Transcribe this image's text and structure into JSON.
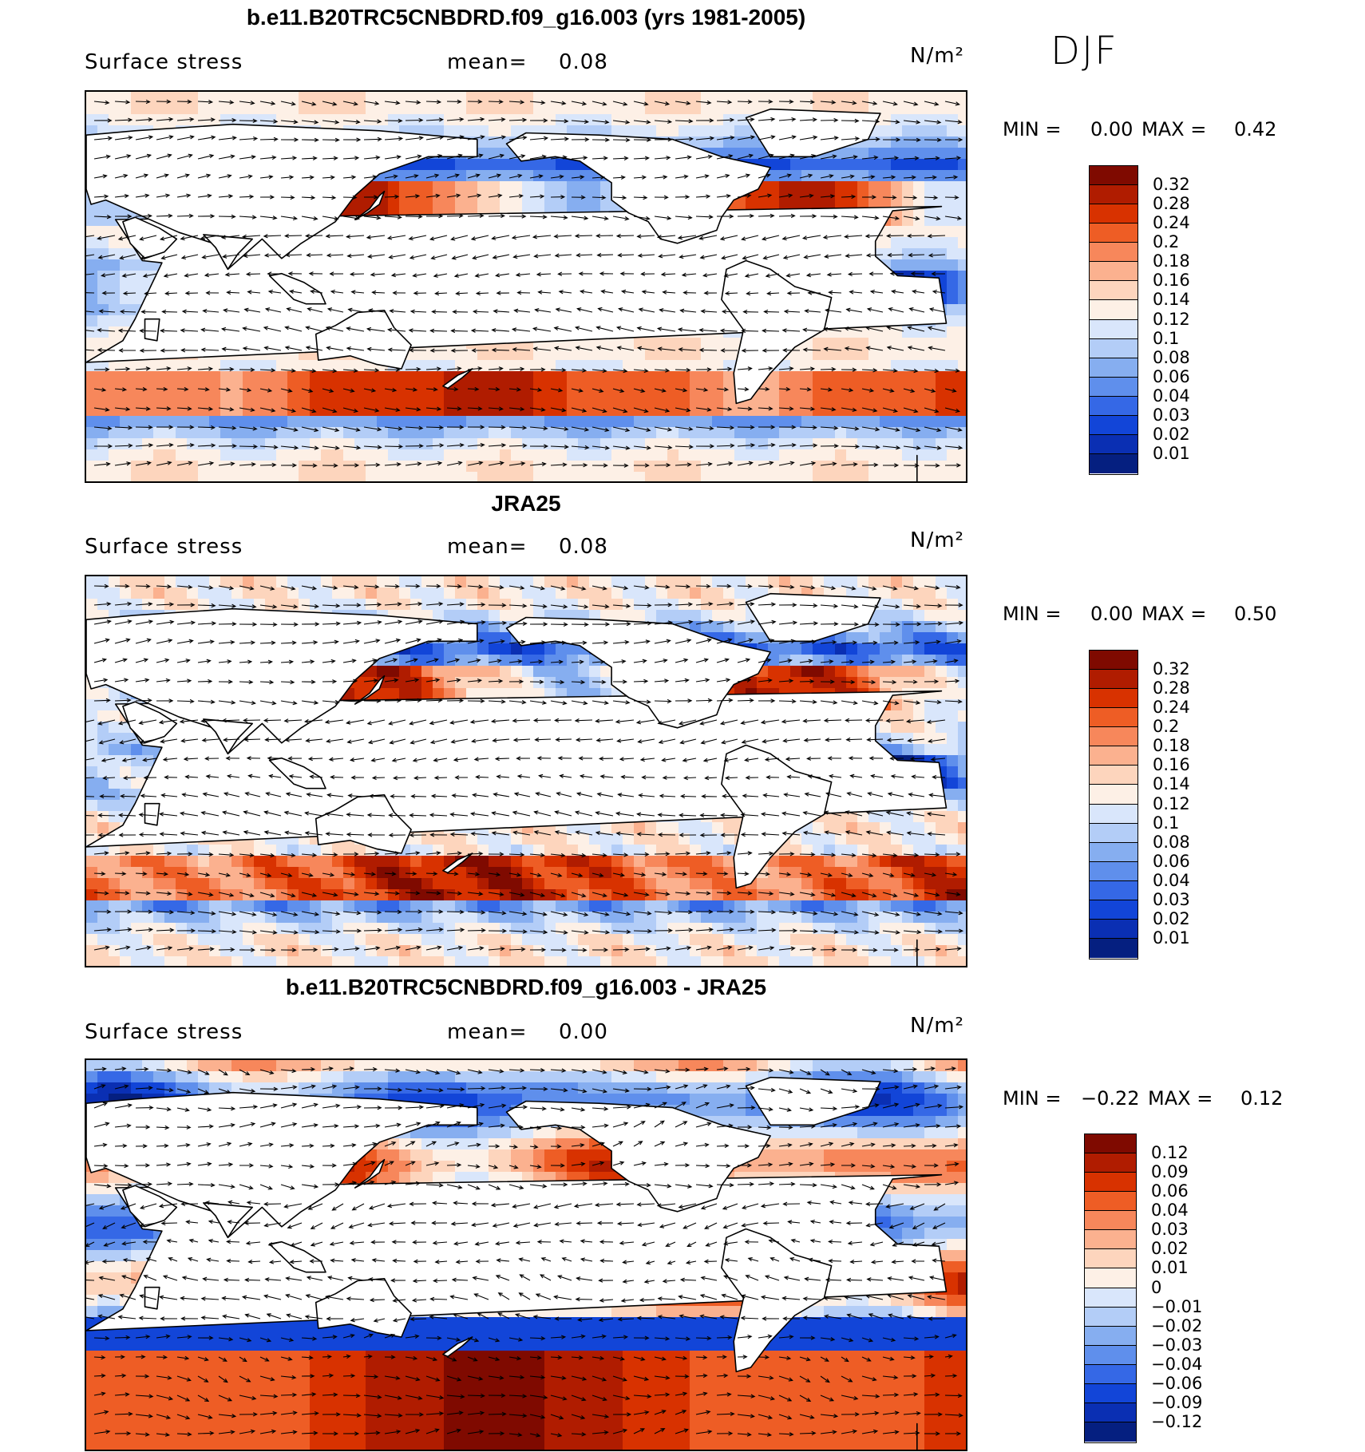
{
  "season": "DJF",
  "panels": [
    {
      "title": "b.e11.B20TRC5CNBDRD.f09_g16.003 (yrs 1981-2005)",
      "variable": "Surface stress",
      "mean_label": "mean=",
      "mean_value": "0.08",
      "units": "N/m²",
      "min_label": "MIN =",
      "min_value": "0.00",
      "max_label": "MAX =",
      "max_value": "0.42",
      "colorbar_ticks": [
        "0.32",
        "0.28",
        "0.24",
        "0.2",
        "0.18",
        "0.16",
        "0.14",
        "0.12",
        "0.1",
        "0.08",
        "0.06",
        "0.04",
        "0.03",
        "0.02",
        "0.01"
      ]
    },
    {
      "title": "JRA25",
      "variable": "Surface stress",
      "mean_label": "mean=",
      "mean_value": "0.08",
      "units": "N/m²",
      "min_label": "MIN =",
      "min_value": "0.00",
      "max_label": "MAX =",
      "max_value": "0.50",
      "colorbar_ticks": [
        "0.32",
        "0.28",
        "0.24",
        "0.2",
        "0.18",
        "0.16",
        "0.14",
        "0.12",
        "0.1",
        "0.08",
        "0.06",
        "0.04",
        "0.03",
        "0.02",
        "0.01"
      ]
    },
    {
      "title": "b.e11.B20TRC5CNBDRD.f09_g16.003 - JRA25",
      "variable": "Surface stress",
      "mean_label": "mean=",
      "mean_value": "0.00",
      "units": "N/m²",
      "min_label": "MIN =",
      "min_value": "−0.22",
      "max_label": "MAX =",
      "max_value": "0.12",
      "colorbar_ticks": [
        "0.12",
        "0.09",
        "0.06",
        "0.04",
        "0.03",
        "0.02",
        "0.01",
        "0",
        "−0.01",
        "−0.02",
        "−0.03",
        "−0.04",
        "−0.06",
        "−0.09",
        "−0.12"
      ]
    }
  ],
  "colors": {
    "seq": [
      "#7f0a00",
      "#b01c00",
      "#d83200",
      "#ee5d25",
      "#f7875b",
      "#fbb18f",
      "#fdd5bd",
      "#fdf0e6",
      "#d9e6fb",
      "#b3cdf7",
      "#86aef0",
      "#5f8fec",
      "#3568e6",
      "#1245d8",
      "#0a2fb3",
      "#051f80"
    ],
    "div": [
      "#7f0a00",
      "#b01c00",
      "#d83200",
      "#ee5d25",
      "#f7875b",
      "#fbb18f",
      "#fdd5bd",
      "#fdf0e6",
      "#d9e6fb",
      "#b3cdf7",
      "#86aef0",
      "#5f8fec",
      "#3568e6",
      "#1245d8",
      "#0a2fb3",
      "#051f80"
    ]
  }
}
